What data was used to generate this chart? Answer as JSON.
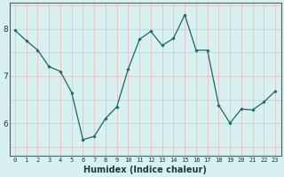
{
  "x": [
    0,
    1,
    2,
    3,
    4,
    5,
    6,
    7,
    8,
    9,
    10,
    11,
    12,
    13,
    14,
    15,
    16,
    17,
    18,
    19,
    20,
    21,
    22,
    23
  ],
  "y": [
    7.97,
    7.75,
    7.55,
    7.2,
    7.1,
    6.65,
    5.65,
    5.72,
    6.1,
    6.35,
    7.15,
    7.78,
    7.95,
    7.65,
    7.8,
    8.3,
    7.55,
    7.55,
    6.38,
    6.0,
    6.3,
    6.28,
    6.45,
    6.68
  ],
  "line_color": "#1a6b5a",
  "marker": "D",
  "marker_size": 1.8,
  "bg_color": "#d8f0f0",
  "grid_color": "#e8b8b8",
  "xlabel": "Humidex (Indice chaleur)",
  "xlim": [
    -0.5,
    23.5
  ],
  "ylim": [
    5.3,
    8.55
  ],
  "yticks": [
    6,
    7,
    8
  ],
  "xticks": [
    0,
    1,
    2,
    3,
    4,
    5,
    6,
    7,
    8,
    9,
    10,
    11,
    12,
    13,
    14,
    15,
    16,
    17,
    18,
    19,
    20,
    21,
    22,
    23
  ],
  "xlabel_fontsize": 7.0,
  "xtick_fontsize": 5.0,
  "ytick_fontsize": 6.5,
  "linewidth": 0.9
}
